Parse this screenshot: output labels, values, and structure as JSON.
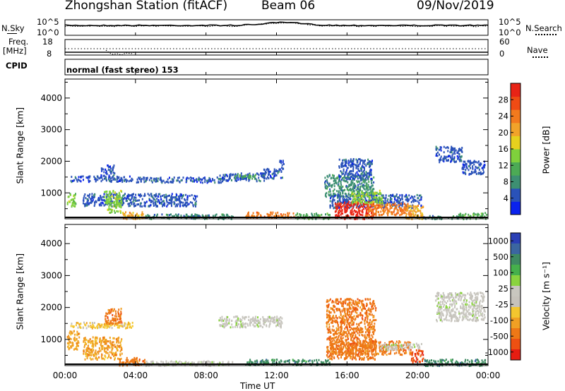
{
  "header": {
    "station_title": "Zhongshan Station (fitACF)",
    "beam_label": "Beam 06",
    "date": "09/Nov/2019"
  },
  "noise_panel": {
    "left_label": "N.Sky",
    "left_ticks": [
      "10^5",
      "10^0"
    ],
    "right_label": "N.Search",
    "right_ticks": [
      "10^5",
      "10^0"
    ]
  },
  "freq_panel": {
    "left_label_1": "Freq.",
    "left_label_2": "[MHz]",
    "left_ticks": [
      "18",
      "8"
    ],
    "right_label": "Nave",
    "right_ticks": [
      "60",
      "0"
    ],
    "cpid_label": "CPID",
    "cpid_text": "normal (fast stereo) 153"
  },
  "chart_data": [
    {
      "type": "heatmap",
      "name": "power",
      "xlabel": "",
      "ylabel": "Slant Range [km]",
      "x_ticks": [
        "00:00",
        "04:00",
        "08:00",
        "12:00",
        "16:00",
        "20:00",
        "00:00"
      ],
      "xlim_hours": [
        0,
        24
      ],
      "ylim": [
        180,
        4600
      ],
      "y_ticks": [
        1000,
        2000,
        3000,
        4000
      ],
      "colorbar_label": "Power [dB]",
      "colorbar_ticks": [
        "4",
        "8",
        "12",
        "16",
        "20",
        "24",
        "28"
      ],
      "colorbar_colors": [
        "#0a22ee",
        "#2a52b8",
        "#3d8f72",
        "#4caa55",
        "#7fd03c",
        "#e6d11e",
        "#f1a32a",
        "#f27a1e",
        "#ef4b14",
        "#e82316"
      ],
      "regions": [
        {
          "t0": 0.1,
          "t1": 0.6,
          "r0": 600,
          "r1": 1000,
          "c": 4
        },
        {
          "t0": 0.3,
          "t1": 3.8,
          "r0": 1380,
          "r1": 1560,
          "c": 1
        },
        {
          "t0": 2.0,
          "t1": 2.8,
          "r0": 1560,
          "r1": 1900,
          "c": 1
        },
        {
          "t0": 1.0,
          "t1": 7.5,
          "r0": 600,
          "r1": 1000,
          "c": 1
        },
        {
          "t0": 2.2,
          "t1": 3.2,
          "r0": 400,
          "r1": 1100,
          "c": 4
        },
        {
          "t0": 4.0,
          "t1": 9.0,
          "r0": 1350,
          "r1": 1520,
          "c": 1
        },
        {
          "t0": 3.2,
          "t1": 4.5,
          "r0": 200,
          "r1": 420,
          "c": 6
        },
        {
          "t0": 4.5,
          "t1": 9.5,
          "r0": 200,
          "r1": 350,
          "c": 2
        },
        {
          "t0": 8.7,
          "t1": 11.3,
          "r0": 1400,
          "r1": 1650,
          "c": 1
        },
        {
          "t0": 9.6,
          "t1": 10.8,
          "r0": 1450,
          "r1": 1600,
          "c": 3
        },
        {
          "t0": 11.2,
          "t1": 12.3,
          "r0": 1480,
          "r1": 1800,
          "c": 1
        },
        {
          "t0": 12.1,
          "t1": 12.4,
          "r0": 1750,
          "r1": 2050,
          "c": 1
        },
        {
          "t0": 10.2,
          "t1": 13.0,
          "r0": 230,
          "r1": 420,
          "c": 7
        },
        {
          "t0": 13.0,
          "t1": 15.0,
          "r0": 200,
          "r1": 380,
          "c": 3
        },
        {
          "t0": 14.7,
          "t1": 17.5,
          "r0": 900,
          "r1": 1600,
          "c": 2
        },
        {
          "t0": 15.5,
          "t1": 17.4,
          "r0": 1450,
          "r1": 2100,
          "c": 1
        },
        {
          "t0": 15.0,
          "t1": 20.2,
          "r0": 550,
          "r1": 980,
          "c": 1
        },
        {
          "t0": 15.3,
          "t1": 17.5,
          "r0": 200,
          "r1": 750,
          "c": 9
        },
        {
          "t0": 17.0,
          "t1": 19.6,
          "r0": 300,
          "r1": 700,
          "c": 7
        },
        {
          "t0": 16.2,
          "t1": 18.0,
          "r0": 700,
          "r1": 1100,
          "c": 4
        },
        {
          "t0": 19.3,
          "t1": 20.3,
          "r0": 200,
          "r1": 650,
          "c": 6
        },
        {
          "t0": 20.3,
          "t1": 22.3,
          "r0": 200,
          "r1": 300,
          "c": 2
        },
        {
          "t0": 22.3,
          "t1": 23.9,
          "r0": 200,
          "r1": 400,
          "c": 3
        },
        {
          "t0": 21.0,
          "t1": 22.5,
          "r0": 2000,
          "r1": 2500,
          "c": 1
        },
        {
          "t0": 22.5,
          "t1": 23.8,
          "r0": 1600,
          "r1": 2050,
          "c": 1
        }
      ]
    },
    {
      "type": "heatmap",
      "name": "velocity",
      "xlabel": "Time UT",
      "ylabel": "Slant Range [km]",
      "x_ticks": [
        "00:00",
        "04:00",
        "08:00",
        "12:00",
        "16:00",
        "20:00",
        "00:00"
      ],
      "xlim_hours": [
        0,
        24
      ],
      "ylim": [
        180,
        4600
      ],
      "y_ticks": [
        1000,
        2000,
        3000,
        4000
      ],
      "colorbar_label": "Velocity [m s⁻¹]",
      "colorbar_ticks": [
        "1000",
        "500",
        "100",
        "25",
        "-25",
        "-100",
        "-500",
        "-1000"
      ],
      "colorbar_colors": [
        "#2a3fb5",
        "#3b66a0",
        "#3e8a62",
        "#46b04c",
        "#8ad33f",
        "#c8c6bf",
        "#c6c2bb",
        "#f3c62f",
        "#f0a024",
        "#ee7816",
        "#ee5012",
        "#e61d12"
      ],
      "regions": [
        {
          "t0": 0.1,
          "t1": 0.8,
          "r0": 700,
          "r1": 1300,
          "c": 8
        },
        {
          "t0": 0.3,
          "t1": 3.8,
          "r0": 1380,
          "r1": 1560,
          "c": 7
        },
        {
          "t0": 1.0,
          "t1": 3.2,
          "r0": 400,
          "r1": 1100,
          "c": 8
        },
        {
          "t0": 2.2,
          "t1": 3.2,
          "r0": 1500,
          "r1": 2000,
          "c": 9
        },
        {
          "t0": 3.0,
          "t1": 4.5,
          "r0": 200,
          "r1": 450,
          "c": 9
        },
        {
          "t0": 4.5,
          "t1": 9.5,
          "r0": 200,
          "r1": 350,
          "c": 5
        },
        {
          "t0": 8.7,
          "t1": 12.3,
          "r0": 1400,
          "r1": 1750,
          "c": 5
        },
        {
          "t0": 10.2,
          "t1": 15.0,
          "r0": 220,
          "r1": 400,
          "c": 2
        },
        {
          "t0": 14.8,
          "t1": 17.6,
          "r0": 400,
          "r1": 2300,
          "c": 9
        },
        {
          "t0": 15.0,
          "t1": 19.6,
          "r0": 550,
          "r1": 980,
          "c": 9
        },
        {
          "t0": 17.8,
          "t1": 20.2,
          "r0": 700,
          "r1": 900,
          "c": 5
        },
        {
          "t0": 19.6,
          "t1": 20.3,
          "r0": 300,
          "r1": 700,
          "c": 10
        },
        {
          "t0": 20.3,
          "t1": 23.9,
          "r0": 200,
          "r1": 400,
          "c": 2
        },
        {
          "t0": 21.0,
          "t1": 23.8,
          "r0": 1600,
          "r1": 2500,
          "c": 5
        }
      ]
    }
  ]
}
